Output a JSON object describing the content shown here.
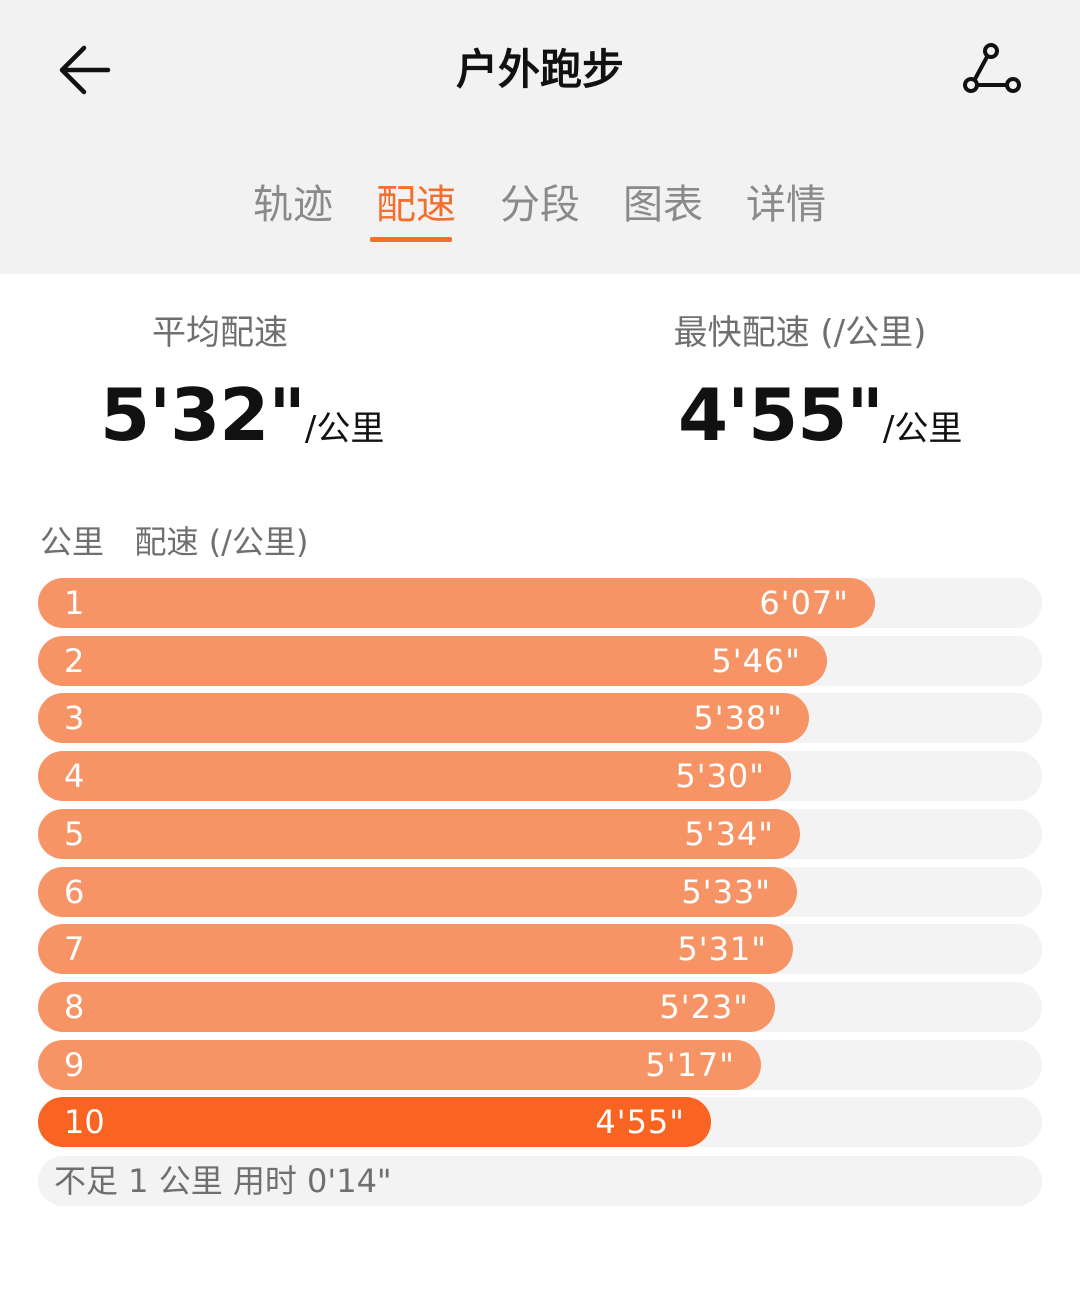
{
  "header": {
    "title": "户外跑步",
    "back_icon": "arrow-left-icon",
    "route_icon": "route-share-icon"
  },
  "tabs": [
    {
      "label": "轨迹",
      "active": false
    },
    {
      "label": "配速",
      "active": true
    },
    {
      "label": "分段",
      "active": false
    },
    {
      "label": "图表",
      "active": false
    },
    {
      "label": "详情",
      "active": false
    }
  ],
  "summary": {
    "avg": {
      "label": "平均配速",
      "value": "5'32\"",
      "unit": "/公里"
    },
    "best": {
      "label": "最快配速 (/公里)",
      "value": "4'55\"",
      "unit": "/公里"
    }
  },
  "splits": {
    "header": "公里   配速 (/公里)",
    "colors": {
      "bar": "#f79466",
      "fastest": "#f96422",
      "track": "#f3f3f3",
      "accent": "#f2702e"
    },
    "rows": [
      {
        "km": "1",
        "pace": "6'07\"",
        "seconds": 367
      },
      {
        "km": "2",
        "pace": "5'46\"",
        "seconds": 346
      },
      {
        "km": "3",
        "pace": "5'38\"",
        "seconds": 338
      },
      {
        "km": "4",
        "pace": "5'30\"",
        "seconds": 330
      },
      {
        "km": "5",
        "pace": "5'34\"",
        "seconds": 334
      },
      {
        "km": "6",
        "pace": "5'33\"",
        "seconds": 333
      },
      {
        "km": "7",
        "pace": "5'31\"",
        "seconds": 331
      },
      {
        "km": "8",
        "pace": "5'23\"",
        "seconds": 323
      },
      {
        "km": "9",
        "pace": "5'17\"",
        "seconds": 317
      },
      {
        "km": "10",
        "pace": "4'55\"",
        "seconds": 295,
        "fastest": true
      }
    ],
    "remainder": "不足 1 公里 用时 0'14\""
  }
}
